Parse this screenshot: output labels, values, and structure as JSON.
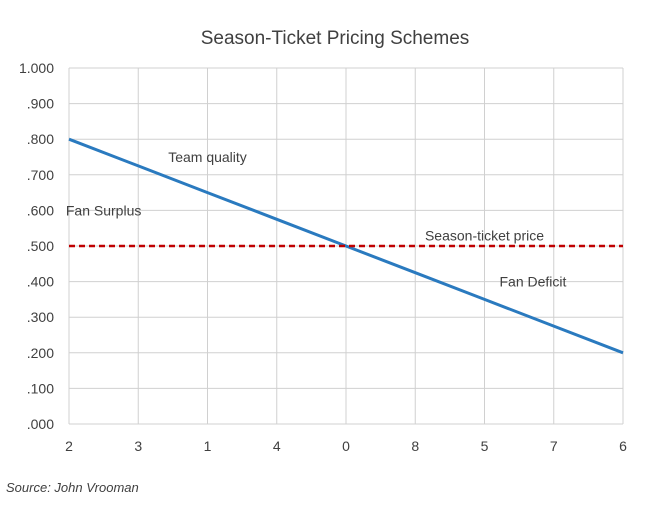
{
  "chart_data": {
    "type": "line",
    "title": "Season-Ticket Pricing Schemes",
    "categories": [
      "2",
      "3",
      "1",
      "4",
      "0",
      "8",
      "5",
      "7",
      "6"
    ],
    "ylim": [
      0,
      1
    ],
    "yticks": [
      {
        "value": 0.0,
        "label": ".000"
      },
      {
        "value": 0.1,
        "label": ".100"
      },
      {
        "value": 0.2,
        "label": ".200"
      },
      {
        "value": 0.3,
        "label": ".300"
      },
      {
        "value": 0.4,
        "label": ".400"
      },
      {
        "value": 0.5,
        "label": ".500"
      },
      {
        "value": 0.6,
        "label": ".600"
      },
      {
        "value": 0.7,
        "label": ".700"
      },
      {
        "value": 0.8,
        "label": ".800"
      },
      {
        "value": 0.9,
        "label": ".900"
      },
      {
        "value": 1.0,
        "label": "1.000"
      }
    ],
    "grid": true,
    "series": [
      {
        "name": "Team quality",
        "color": "#2a7abf",
        "style": "solid",
        "values": [
          0.8,
          0.725,
          0.65,
          0.575,
          0.5,
          0.425,
          0.35,
          0.275,
          0.2
        ]
      },
      {
        "name": "Season-ticket price",
        "color": "#c00000",
        "style": "dashed",
        "values": [
          0.5,
          0.5,
          0.5,
          0.5,
          0.5,
          0.5,
          0.5,
          0.5,
          0.5
        ]
      }
    ],
    "annotations": [
      {
        "text": "Team quality",
        "x": 2,
        "y": 0.75
      },
      {
        "text": "Fan Surplus",
        "x": 0.5,
        "y": 0.6
      },
      {
        "text": "Season-ticket price",
        "x": 6,
        "y": 0.53
      },
      {
        "text": "Fan Deficit",
        "x": 6.7,
        "y": 0.4
      }
    ]
  },
  "source": "Source: John Vrooman"
}
